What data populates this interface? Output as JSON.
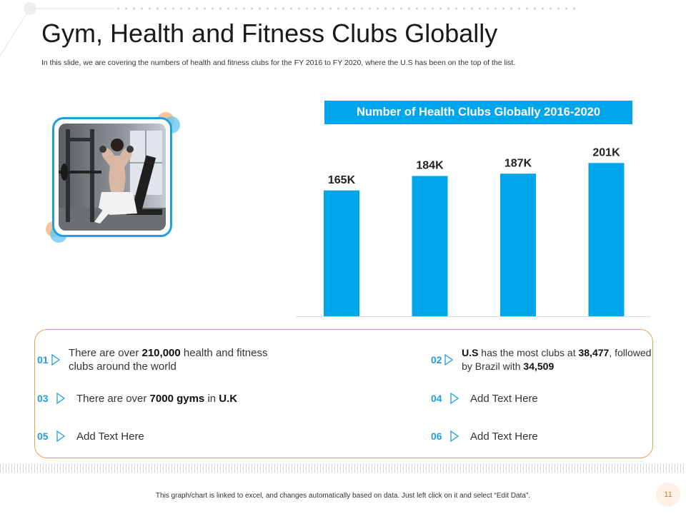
{
  "slide": {
    "title": "Gym, Health and Fitness Clubs Globally",
    "subtitle": "In this slide, we are covering the numbers of health and fitness clubs for the FY 2016 to FY 2020, where the U.S has been on the top of the list.",
    "footer": "This graph/chart is linked to excel, and changes automatically based on data. Just left click on it and select “Edit Data”.",
    "page_number": "11"
  },
  "colors": {
    "accent": "#00a6eb",
    "border": "#e8a24a",
    "number": "#1e9fe0"
  },
  "chart_data": {
    "type": "bar",
    "title": "Number of Health Clubs Globally 2016-2020",
    "categories": [
      "",
      "",
      "",
      ""
    ],
    "values": [
      165,
      184,
      187,
      201
    ],
    "data_labels": [
      "165K",
      "184K",
      "187K",
      "201K"
    ],
    "unit": "K",
    "ylim": [
      0,
      220
    ],
    "grid": false,
    "xlabel": "",
    "ylabel": ""
  },
  "points": {
    "p01": {
      "num": "01",
      "t1": "There are over ",
      "b1": "210,000",
      "t2": " health and fitness clubs around the world"
    },
    "p02": {
      "num": "02",
      "b1": "U.S",
      "t1": " has the most clubs at ",
      "b2": "38,477",
      "t2": ", followed by Brazil with ",
      "b3": "34,509"
    },
    "p03": {
      "num": "03",
      "t1": "There are over ",
      "b1": "7000 gyms",
      "t2": " in ",
      "b2": "U.K"
    },
    "p04": {
      "num": "04",
      "text": "Add Text Here"
    },
    "p05": {
      "num": "05",
      "text": "Add Text Here"
    },
    "p06": {
      "num": "06",
      "text": "Add Text Here"
    }
  }
}
